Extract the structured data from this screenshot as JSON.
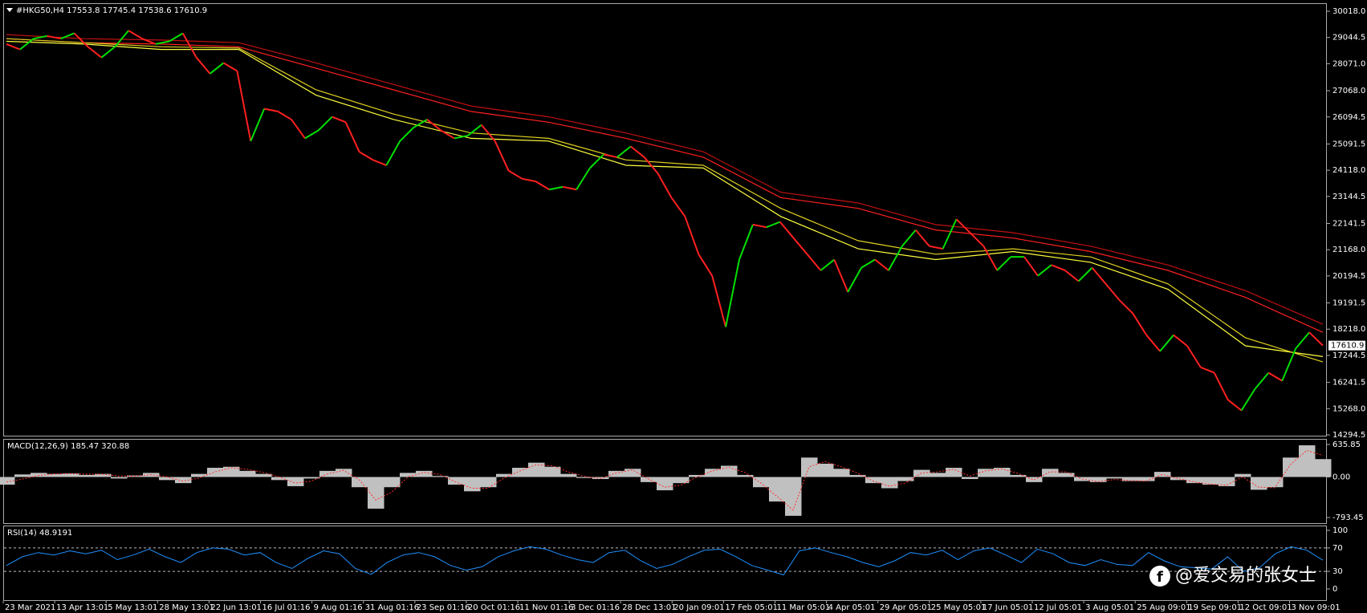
{
  "chart_data": {
    "type": "price_line",
    "title": "#HKG50,H4  17553.8 17745.4 17538.6 17610.9",
    "last_price": 17610.9,
    "up_color": "#00e000",
    "down_color": "#ff2020",
    "closes": [
      28800,
      28600,
      29000,
      29100,
      29000,
      29200,
      28700,
      28300,
      28700,
      29300,
      29000,
      28800,
      28900,
      29200,
      28300,
      27700,
      28100,
      27800,
      25200,
      26400,
      26300,
      26000,
      25300,
      25600,
      26100,
      25900,
      24800,
      24500,
      24300,
      25200,
      25700,
      26000,
      25600,
      25300,
      25400,
      25800,
      25200,
      24100,
      23800,
      23700,
      23400,
      23500,
      23400,
      24200,
      24700,
      24600,
      25000,
      24600,
      24000,
      23100,
      22400,
      21000,
      20200,
      18300,
      20800,
      22100,
      22000,
      22200,
      21600,
      21000,
      20400,
      20800,
      19600,
      20500,
      20800,
      20400,
      21300,
      21900,
      21300,
      21200,
      22300,
      21800,
      21300,
      20400,
      20900,
      20900,
      20200,
      20600,
      20400,
      20000,
      20500,
      19900,
      19300,
      18800,
      18000,
      17400,
      18000,
      17600,
      16800,
      16600,
      15600,
      15200,
      16000,
      16600,
      16300,
      17500,
      18100,
      17610.9
    ],
    "ylim": [
      14294.5,
      30018.0
    ],
    "yticks": [
      {
        "value": 30018.0,
        "label": "30018.0"
      },
      {
        "value": 29044.5,
        "label": "29044.5"
      },
      {
        "value": 28071.0,
        "label": "28071.0"
      },
      {
        "value": 27068.0,
        "label": "27068.0"
      },
      {
        "value": 26094.5,
        "label": "26094.5"
      },
      {
        "value": 25091.5,
        "label": "25091.5"
      },
      {
        "value": 24118.0,
        "label": "24118.0"
      },
      {
        "value": 23144.5,
        "label": "23144.5"
      },
      {
        "value": 22141.5,
        "label": "22141.5"
      },
      {
        "value": 21168.0,
        "label": "21168.0"
      },
      {
        "value": 20194.5,
        "label": "20194.5"
      },
      {
        "value": 19191.5,
        "label": "19191.5"
      },
      {
        "value": 18218.0,
        "label": "18218.0"
      },
      {
        "value": 17244.5,
        "label": "17244.5"
      },
      {
        "value": 16241.5,
        "label": "16241.5"
      },
      {
        "value": 15268.0,
        "label": "15268.0"
      },
      {
        "value": 14294.5,
        "label": "14294.5"
      }
    ],
    "moving_averages": [
      {
        "color": "#ff2020",
        "values": [
          29000,
          28850,
          28800,
          28700,
          27900,
          27100,
          26300,
          25900,
          25300,
          24600,
          23100,
          22700,
          21900,
          21600,
          21100,
          20400,
          19400,
          18100
        ]
      },
      {
        "color": "#c01010",
        "values": [
          29150,
          29000,
          28950,
          28850,
          28100,
          27300,
          26500,
          26100,
          25500,
          24800,
          23300,
          22900,
          22100,
          21800,
          21300,
          20600,
          19650,
          18400
        ]
      },
      {
        "color": "#ffff40",
        "values": [
          28900,
          28800,
          28600,
          28600,
          26900,
          26000,
          25300,
          25200,
          24300,
          24200,
          22400,
          21200,
          20800,
          21100,
          20700,
          19700,
          17600,
          17200
        ]
      },
      {
        "color": "#e0d020",
        "values": [
          29000,
          28850,
          28700,
          28650,
          27100,
          26200,
          25500,
          25300,
          24500,
          24300,
          22700,
          21500,
          21000,
          21200,
          20900,
          19900,
          17900,
          17000
        ]
      }
    ],
    "x_labels": [
      "23 Mar 2021",
      "13 Apr 13:01",
      "5 May 13:01",
      "28 May 13:01",
      "22 Jun 13:01",
      "16 Jul 01:16",
      "9 Aug 01:16",
      "31 Aug 01:16",
      "23 Sep 01:16",
      "20 Oct 01:16",
      "11 Nov 01:16",
      "3 Dec 01:16",
      "28 Dec 13:01",
      "20 Jan 09:01",
      "17 Feb 05:01",
      "11 Mar 05:01",
      "4 Apr 05:01",
      "29 Apr 05:01",
      "25 May 05:01",
      "17 Jun 05:01",
      "12 Jul 05:01",
      "3 Aug 05:01",
      "25 Aug 09:01",
      "19 Sep 09:01",
      "12 Oct 09:01",
      "3 Nov 09:01"
    ],
    "macd": {
      "label": "MACD(12,26,9) 185.47 320.88",
      "ylim": [
        -793.45,
        635.85
      ],
      "yticks": [
        {
          "value": 635.85,
          "label": "635.85"
        },
        {
          "value": 0,
          "label": "0.00"
        },
        {
          "value": -793.45,
          "label": "-793.45"
        }
      ],
      "histogram": [
        -150,
        50,
        80,
        60,
        70,
        40,
        60,
        -30,
        30,
        80,
        -60,
        -120,
        60,
        180,
        200,
        120,
        60,
        -60,
        -180,
        -30,
        120,
        160,
        -200,
        -620,
        -200,
        80,
        120,
        20,
        -150,
        -280,
        -200,
        60,
        180,
        280,
        200,
        60,
        -20,
        -40,
        120,
        160,
        -100,
        -260,
        -120,
        40,
        160,
        220,
        40,
        -200,
        -480,
        -760,
        380,
        260,
        160,
        40,
        -120,
        -220,
        -80,
        140,
        80,
        180,
        -40,
        160,
        180,
        40,
        -100,
        160,
        80,
        -80,
        -100,
        -30,
        -80,
        -80,
        100,
        -60,
        -120,
        -150,
        -180,
        60,
        -250,
        -200,
        380,
        620,
        350
      ],
      "signal": [
        -100,
        -40,
        30,
        60,
        65,
        55,
        55,
        20,
        15,
        45,
        0,
        -80,
        -20,
        100,
        180,
        150,
        90,
        0,
        -120,
        -80,
        60,
        130,
        -60,
        -450,
        -300,
        0,
        90,
        50,
        -100,
        -220,
        -220,
        -20,
        120,
        240,
        220,
        100,
        10,
        -30,
        80,
        140,
        -40,
        -200,
        -160,
        0,
        120,
        190,
        90,
        -120,
        -380,
        -650,
        200,
        300,
        200,
        80,
        -80,
        -180,
        -120,
        80,
        100,
        150,
        20,
        120,
        160,
        70,
        -60,
        100,
        100,
        -40,
        -90,
        -50,
        -70,
        -80,
        50,
        -30,
        -100,
        -140,
        -160,
        0,
        -200,
        -210,
        250,
        520,
        420
      ]
    },
    "rsi": {
      "label": "RSI(14) 48.9191",
      "color": "#1e90ff",
      "ylim": [
        0,
        100
      ],
      "yticks": [
        100,
        70,
        30,
        0
      ],
      "levels": [
        70,
        30
      ],
      "values": [
        40,
        55,
        62,
        58,
        65,
        60,
        66,
        50,
        58,
        68,
        55,
        45,
        62,
        70,
        68,
        58,
        62,
        45,
        35,
        52,
        65,
        60,
        35,
        25,
        45,
        58,
        62,
        55,
        40,
        32,
        38,
        55,
        65,
        72,
        68,
        58,
        50,
        45,
        62,
        66,
        48,
        35,
        42,
        55,
        66,
        68,
        55,
        40,
        32,
        24,
        65,
        70,
        62,
        55,
        45,
        38,
        48,
        62,
        58,
        66,
        50,
        65,
        70,
        58,
        45,
        68,
        60,
        45,
        40,
        50,
        42,
        40,
        62,
        48,
        38,
        36,
        34,
        55,
        30,
        36,
        60,
        72,
        66,
        49
      ]
    },
    "watermark": "@爱交易的张女士"
  }
}
